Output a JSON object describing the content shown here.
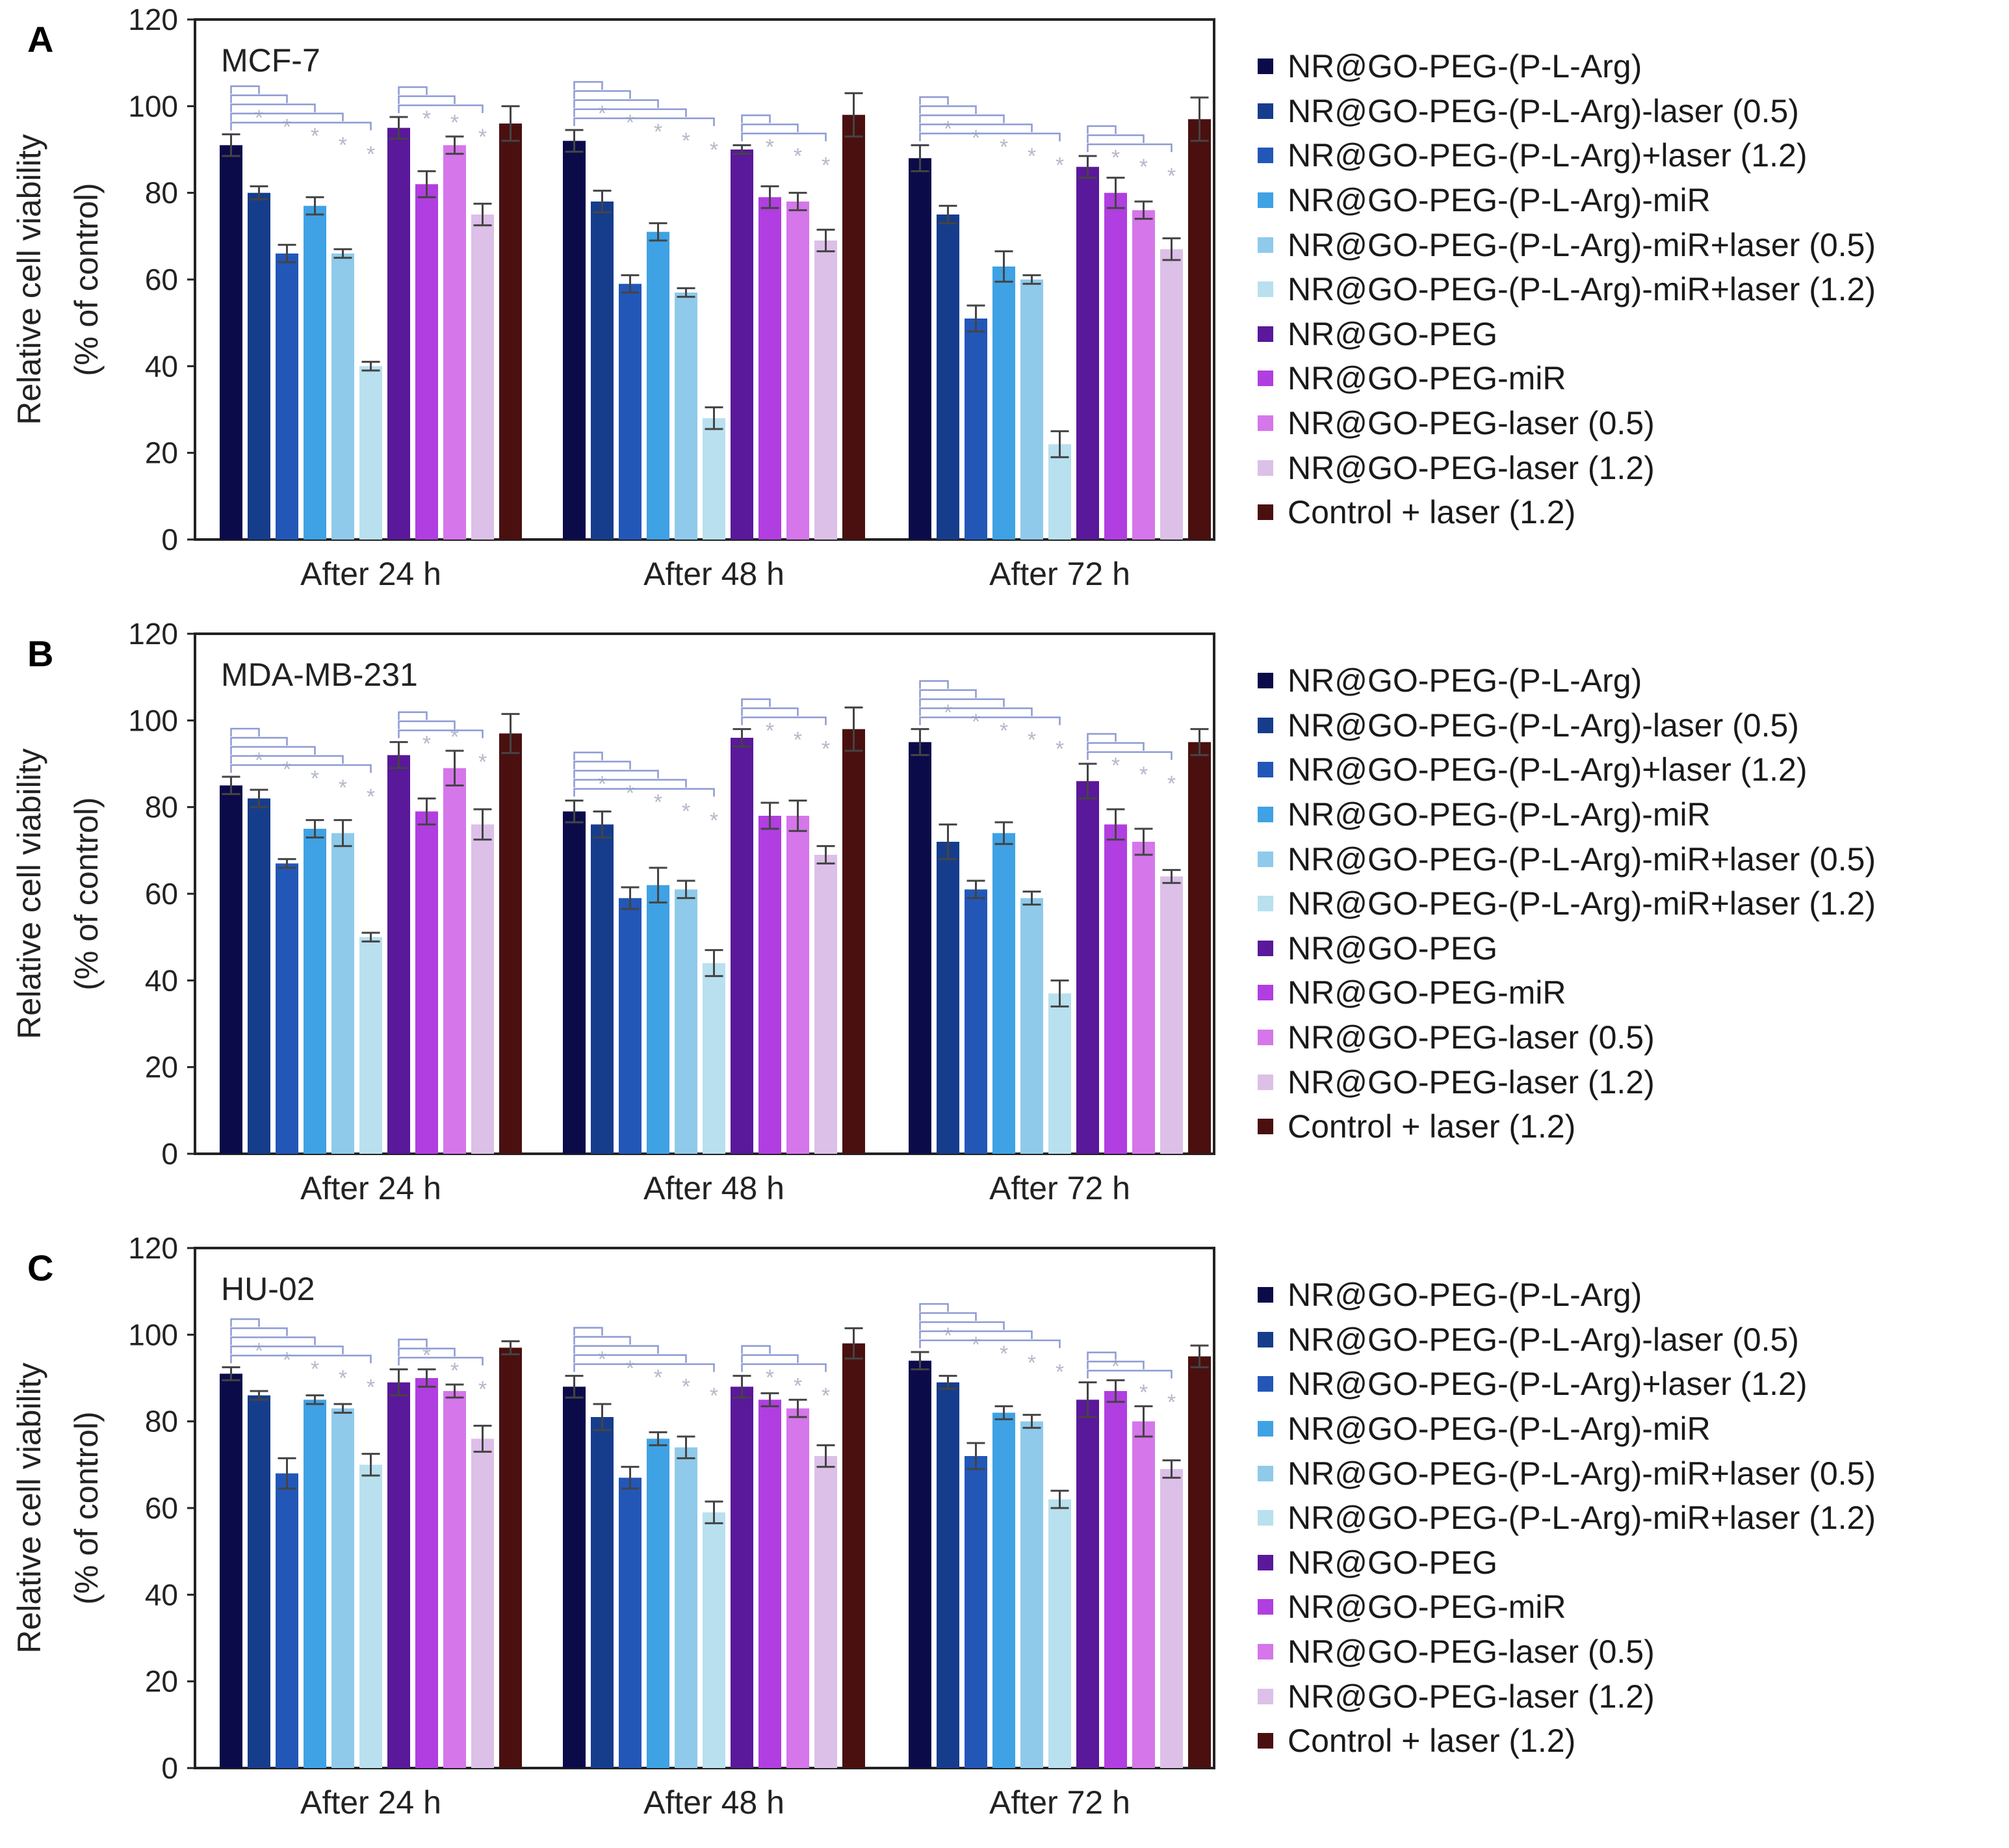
{
  "colors": {
    "series": [
      "#0b0b4a",
      "#163d8c",
      "#2257b8",
      "#3fa2e4",
      "#8fcaeb",
      "#b9e0ef",
      "#5a189a",
      "#b13ee0",
      "#d576ea",
      "#dcc0e8",
      "#4a1010"
    ],
    "brackets": "#8d9ad3",
    "stars": "#b3b9c8"
  },
  "chart_data": [
    {
      "type": "bar",
      "panel_label": "A",
      "title": "MCF-7",
      "xlabel": "",
      "ylabel": "Relative cell viability",
      "ylabel2": "(% of control)",
      "ylim": [
        0,
        120
      ],
      "yticks": [
        "0",
        "20",
        "40",
        "60",
        "80",
        "100",
        "120"
      ],
      "categories": [
        "After 24 h",
        "After 48 h",
        "After 72 h"
      ],
      "grid": false,
      "legend_position": "right",
      "significance": "*",
      "series": [
        {
          "name": "NR@GO-PEG-(P-L-Arg)",
          "values": [
            91,
            92,
            88
          ],
          "errors": [
            2.5,
            2.5,
            3
          ]
        },
        {
          "name": "NR@GO-PEG-(P-L-Arg)-laser (0.5)",
          "values": [
            80,
            78,
            75
          ],
          "errors": [
            1.5,
            2.5,
            2
          ]
        },
        {
          "name": "NR@GO-PEG-(P-L-Arg)+laser (1.2)",
          "values": [
            66,
            59,
            51
          ],
          "errors": [
            2,
            2,
            3
          ]
        },
        {
          "name": "NR@GO-PEG-(P-L-Arg)-miR",
          "values": [
            77,
            71,
            63
          ],
          "errors": [
            2,
            2,
            3.5
          ]
        },
        {
          "name": "NR@GO-PEG-(P-L-Arg)-miR+laser (0.5)",
          "values": [
            66,
            57,
            60
          ],
          "errors": [
            1,
            1,
            1
          ]
        },
        {
          "name": "NR@GO-PEG-(P-L-Arg)-miR+laser (1.2)",
          "values": [
            40,
            28,
            22
          ],
          "errors": [
            1,
            2.5,
            3
          ]
        },
        {
          "name": "NR@GO-PEG",
          "values": [
            95,
            90,
            86
          ],
          "errors": [
            2.5,
            1,
            2.5
          ]
        },
        {
          "name": "NR@GO-PEG-miR",
          "values": [
            82,
            79,
            80
          ],
          "errors": [
            3,
            2.5,
            3.5
          ]
        },
        {
          "name": "NR@GO-PEG-laser (0.5)",
          "values": [
            91,
            78,
            76
          ],
          "errors": [
            2,
            2,
            2
          ]
        },
        {
          "name": "NR@GO-PEG-laser (1.2)",
          "values": [
            75,
            69,
            67
          ],
          "errors": [
            2.5,
            2.5,
            2.5
          ]
        },
        {
          "name": "Control + laser (1.2)",
          "values": [
            96,
            98,
            97
          ],
          "errors": [
            4,
            5,
            5
          ]
        }
      ]
    },
    {
      "type": "bar",
      "panel_label": "B",
      "title": "MDA-MB-231",
      "xlabel": "",
      "ylabel": "Relative cell viability",
      "ylabel2": "(% of control)",
      "ylim": [
        0,
        120
      ],
      "yticks": [
        "0",
        "20",
        "40",
        "60",
        "80",
        "100",
        "120"
      ],
      "categories": [
        "After 24 h",
        "After 48 h",
        "After 72 h"
      ],
      "grid": false,
      "legend_position": "right",
      "significance": "*",
      "series": [
        {
          "name": "NR@GO-PEG-(P-L-Arg)",
          "values": [
            85,
            79,
            95
          ],
          "errors": [
            2,
            2.5,
            3
          ]
        },
        {
          "name": "NR@GO-PEG-(P-L-Arg)-laser (0.5)",
          "values": [
            82,
            76,
            72
          ],
          "errors": [
            2,
            3,
            4
          ]
        },
        {
          "name": "NR@GO-PEG-(P-L-Arg)+laser (1.2)",
          "values": [
            67,
            59,
            61
          ],
          "errors": [
            1,
            2.5,
            2
          ]
        },
        {
          "name": "NR@GO-PEG-(P-L-Arg)-miR",
          "values": [
            75,
            62,
            74
          ],
          "errors": [
            2,
            4,
            2.5
          ]
        },
        {
          "name": "NR@GO-PEG-(P-L-Arg)-miR+laser (0.5)",
          "values": [
            74,
            61,
            59
          ],
          "errors": [
            3,
            2,
            1.5
          ]
        },
        {
          "name": "NR@GO-PEG-(P-L-Arg)-miR+laser (1.2)",
          "values": [
            50,
            44,
            37
          ],
          "errors": [
            1,
            3,
            3
          ]
        },
        {
          "name": "NR@GO-PEG",
          "values": [
            92,
            96,
            86
          ],
          "errors": [
            3,
            2,
            4
          ]
        },
        {
          "name": "NR@GO-PEG-miR",
          "values": [
            79,
            78,
            76
          ],
          "errors": [
            3,
            3,
            3.5
          ]
        },
        {
          "name": "NR@GO-PEG-laser (0.5)",
          "values": [
            89,
            78,
            72
          ],
          "errors": [
            4,
            3.5,
            3
          ]
        },
        {
          "name": "NR@GO-PEG-laser (1.2)",
          "values": [
            76,
            69,
            64
          ],
          "errors": [
            3.5,
            2,
            1.5
          ]
        },
        {
          "name": "Control + laser (1.2)",
          "values": [
            97,
            98,
            95
          ],
          "errors": [
            4.5,
            5,
            3
          ]
        }
      ]
    },
    {
      "type": "bar",
      "panel_label": "C",
      "title": "HU-02",
      "xlabel": "",
      "ylabel": "Relative cell viability",
      "ylabel2": "(% of control)",
      "ylim": [
        0,
        120
      ],
      "yticks": [
        "0",
        "20",
        "40",
        "60",
        "80",
        "100",
        "120"
      ],
      "categories": [
        "After 24 h",
        "After 48 h",
        "After 72 h"
      ],
      "grid": false,
      "legend_position": "right",
      "significance": "*",
      "series": [
        {
          "name": "NR@GO-PEG-(P-L-Arg)",
          "values": [
            91,
            88,
            94
          ],
          "errors": [
            1.5,
            2.5,
            2
          ]
        },
        {
          "name": "NR@GO-PEG-(P-L-Arg)-laser (0.5)",
          "values": [
            86,
            81,
            89
          ],
          "errors": [
            1,
            3,
            1.5
          ]
        },
        {
          "name": "NR@GO-PEG-(P-L-Arg)+laser (1.2)",
          "values": [
            68,
            67,
            72
          ],
          "errors": [
            3.5,
            2.5,
            3
          ]
        },
        {
          "name": "NR@GO-PEG-(P-L-Arg)-miR",
          "values": [
            85,
            76,
            82
          ],
          "errors": [
            1,
            1.5,
            1.5
          ]
        },
        {
          "name": "NR@GO-PEG-(P-L-Arg)-miR+laser (0.5)",
          "values": [
            83,
            74,
            80
          ],
          "errors": [
            1,
            2.5,
            1.5
          ]
        },
        {
          "name": "NR@GO-PEG-(P-L-Arg)-miR+laser (1.2)",
          "values": [
            70,
            59,
            62
          ],
          "errors": [
            2.5,
            2.5,
            2
          ]
        },
        {
          "name": "NR@GO-PEG",
          "values": [
            89,
            88,
            85
          ],
          "errors": [
            3,
            2.5,
            4
          ]
        },
        {
          "name": "NR@GO-PEG-miR",
          "values": [
            90,
            85,
            87
          ],
          "errors": [
            2,
            1.5,
            2.5
          ]
        },
        {
          "name": "NR@GO-PEG-laser (0.5)",
          "values": [
            87,
            83,
            80
          ],
          "errors": [
            1.5,
            2,
            3.5
          ]
        },
        {
          "name": "NR@GO-PEG-laser (1.2)",
          "values": [
            76,
            72,
            69
          ],
          "errors": [
            3,
            2.5,
            2
          ]
        },
        {
          "name": "Control + laser (1.2)",
          "values": [
            97,
            98,
            95
          ],
          "errors": [
            1.5,
            3.5,
            2.5
          ]
        }
      ]
    }
  ]
}
